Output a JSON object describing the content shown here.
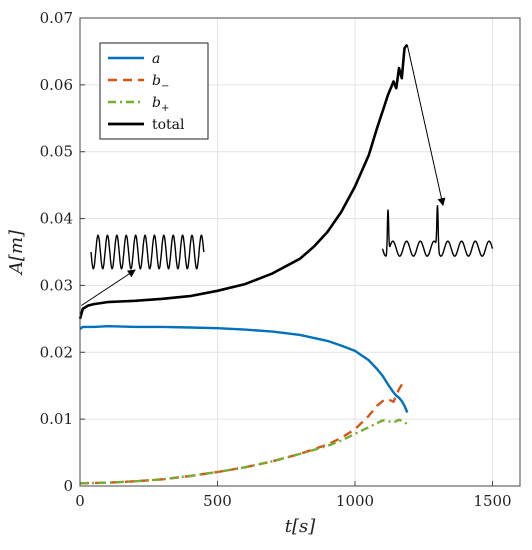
{
  "chart_data": {
    "type": "line",
    "xlabel": "t[s]",
    "ylabel": "A[m]",
    "xlim": [
      0,
      1600
    ],
    "ylim": [
      0,
      0.07
    ],
    "xticks": [
      "0",
      "500",
      "1000",
      "1500"
    ],
    "xtick_values": [
      0,
      500,
      1000,
      1500
    ],
    "yticks": [
      "0",
      "0.01",
      "0.02",
      "0.03",
      "0.04",
      "0.05",
      "0.06",
      "0.07"
    ],
    "ytick_values": [
      0,
      0.01,
      0.02,
      0.03,
      0.04,
      0.05,
      0.06,
      0.07
    ],
    "grid": true,
    "legend_position": "top-left",
    "series": [
      {
        "name": "a",
        "legend_main": "a",
        "legend_sub": "",
        "color": "#0072BD",
        "style": "solid",
        "x": [
          0,
          10,
          50,
          100,
          200,
          300,
          400,
          500,
          600,
          700,
          800,
          900,
          950,
          1000,
          1050,
          1080,
          1100,
          1120,
          1140,
          1150,
          1160,
          1170,
          1180,
          1190
        ],
        "y": [
          0.0235,
          0.0238,
          0.0238,
          0.0239,
          0.0238,
          0.0238,
          0.0237,
          0.0236,
          0.0234,
          0.0231,
          0.0226,
          0.0217,
          0.021,
          0.0202,
          0.0188,
          0.0175,
          0.0165,
          0.0152,
          0.014,
          0.0135,
          0.0132,
          0.0127,
          0.012,
          0.011
        ]
      },
      {
        "name": "b−",
        "legend_main": "b",
        "legend_sub": "−",
        "color": "#D95319",
        "style": "dashed",
        "x": [
          0,
          100,
          200,
          300,
          400,
          500,
          600,
          700,
          800,
          900,
          950,
          1000,
          1050,
          1080,
          1100,
          1120,
          1140,
          1160,
          1180
        ],
        "y": [
          0.0004,
          0.0005,
          0.0007,
          0.001,
          0.0015,
          0.0021,
          0.0028,
          0.0037,
          0.0048,
          0.0062,
          0.0072,
          0.0085,
          0.0105,
          0.012,
          0.0127,
          0.013,
          0.0126,
          0.0145,
          0.0158
        ]
      },
      {
        "name": "b+",
        "legend_main": "b",
        "legend_sub": "+",
        "color": "#77AC30",
        "style": "dashdot",
        "x": [
          0,
          100,
          200,
          300,
          400,
          500,
          600,
          700,
          800,
          900,
          950,
          1000,
          1050,
          1080,
          1100,
          1120,
          1140,
          1160,
          1180,
          1190
        ],
        "y": [
          0.0004,
          0.0005,
          0.0007,
          0.001,
          0.0015,
          0.0021,
          0.0028,
          0.0037,
          0.0048,
          0.006,
          0.0068,
          0.0078,
          0.0088,
          0.0094,
          0.0098,
          0.0097,
          0.0095,
          0.0099,
          0.0096,
          0.0092
        ]
      },
      {
        "name": "total",
        "legend_main": "total",
        "legend_sub": "",
        "color": "#000000",
        "style": "solid",
        "x": [
          0,
          10,
          30,
          50,
          100,
          200,
          300,
          400,
          500,
          600,
          700,
          800,
          850,
          900,
          950,
          1000,
          1050,
          1080,
          1100,
          1120,
          1140,
          1150,
          1160,
          1170,
          1180,
          1190
        ],
        "y": [
          0.025,
          0.0265,
          0.027,
          0.0272,
          0.0275,
          0.0277,
          0.028,
          0.0284,
          0.0292,
          0.0302,
          0.0318,
          0.034,
          0.0358,
          0.038,
          0.041,
          0.0448,
          0.0495,
          0.0535,
          0.056,
          0.0585,
          0.0605,
          0.0595,
          0.0625,
          0.061,
          0.0655,
          0.066
        ]
      }
    ],
    "annotations": [
      {
        "type": "inset-signal",
        "note": "regular oscillation",
        "x_range": [
          40,
          450
        ],
        "y_center": 0.035,
        "amplitude": 0.0025,
        "cycles": 12
      },
      {
        "type": "inset-signal",
        "note": "bursting oscillation",
        "x_range": [
          1100,
          1500
        ],
        "y_center": 0.0355,
        "amplitude": 0.0025,
        "cycles": 8
      },
      {
        "type": "arrow",
        "from": [
          5,
          0.027
        ],
        "to": [
          200,
          0.0323
        ]
      },
      {
        "type": "arrow",
        "from": [
          1190,
          0.066
        ],
        "to": [
          1320,
          0.042
        ]
      }
    ]
  }
}
